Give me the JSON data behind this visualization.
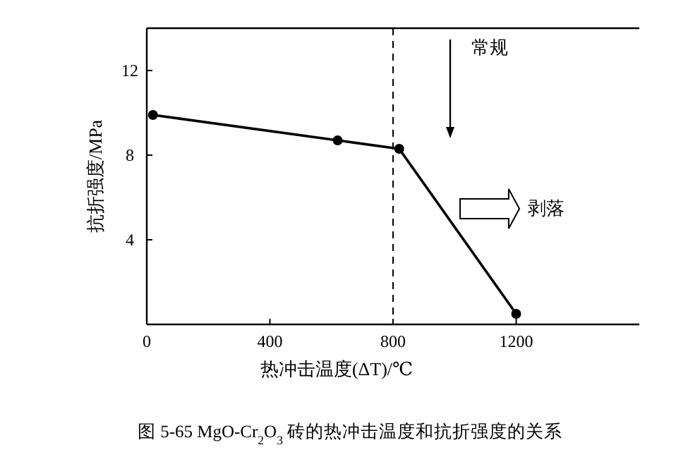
{
  "chart_data": {
    "type": "line",
    "xlabel": "热冲击温度(ΔT)/℃",
    "ylabel": "抗折强度/MPa",
    "x": [
      20,
      620,
      820,
      1200
    ],
    "series": [
      {
        "color": "#000000",
        "values": [
          9.9,
          8.7,
          8.3,
          0.5
        ]
      }
    ],
    "xlim": [
      0,
      1600
    ],
    "xticks": [
      0,
      400,
      800,
      1200
    ],
    "ylim": [
      0,
      14
    ],
    "yticks": [
      4,
      8,
      12
    ],
    "marker": "circle",
    "line_style": "solid",
    "grid": false,
    "ref_lines": [
      {
        "axis": "x",
        "value": 800,
        "line_style": "dashed",
        "color": "#000000"
      }
    ],
    "annotations": [
      "常规",
      "剥落",
      "图 5-65   MgO-Cr$_{2}$O$_{3}$ 砖的热冲击温度和抗折强度的关系"
    ]
  }
}
